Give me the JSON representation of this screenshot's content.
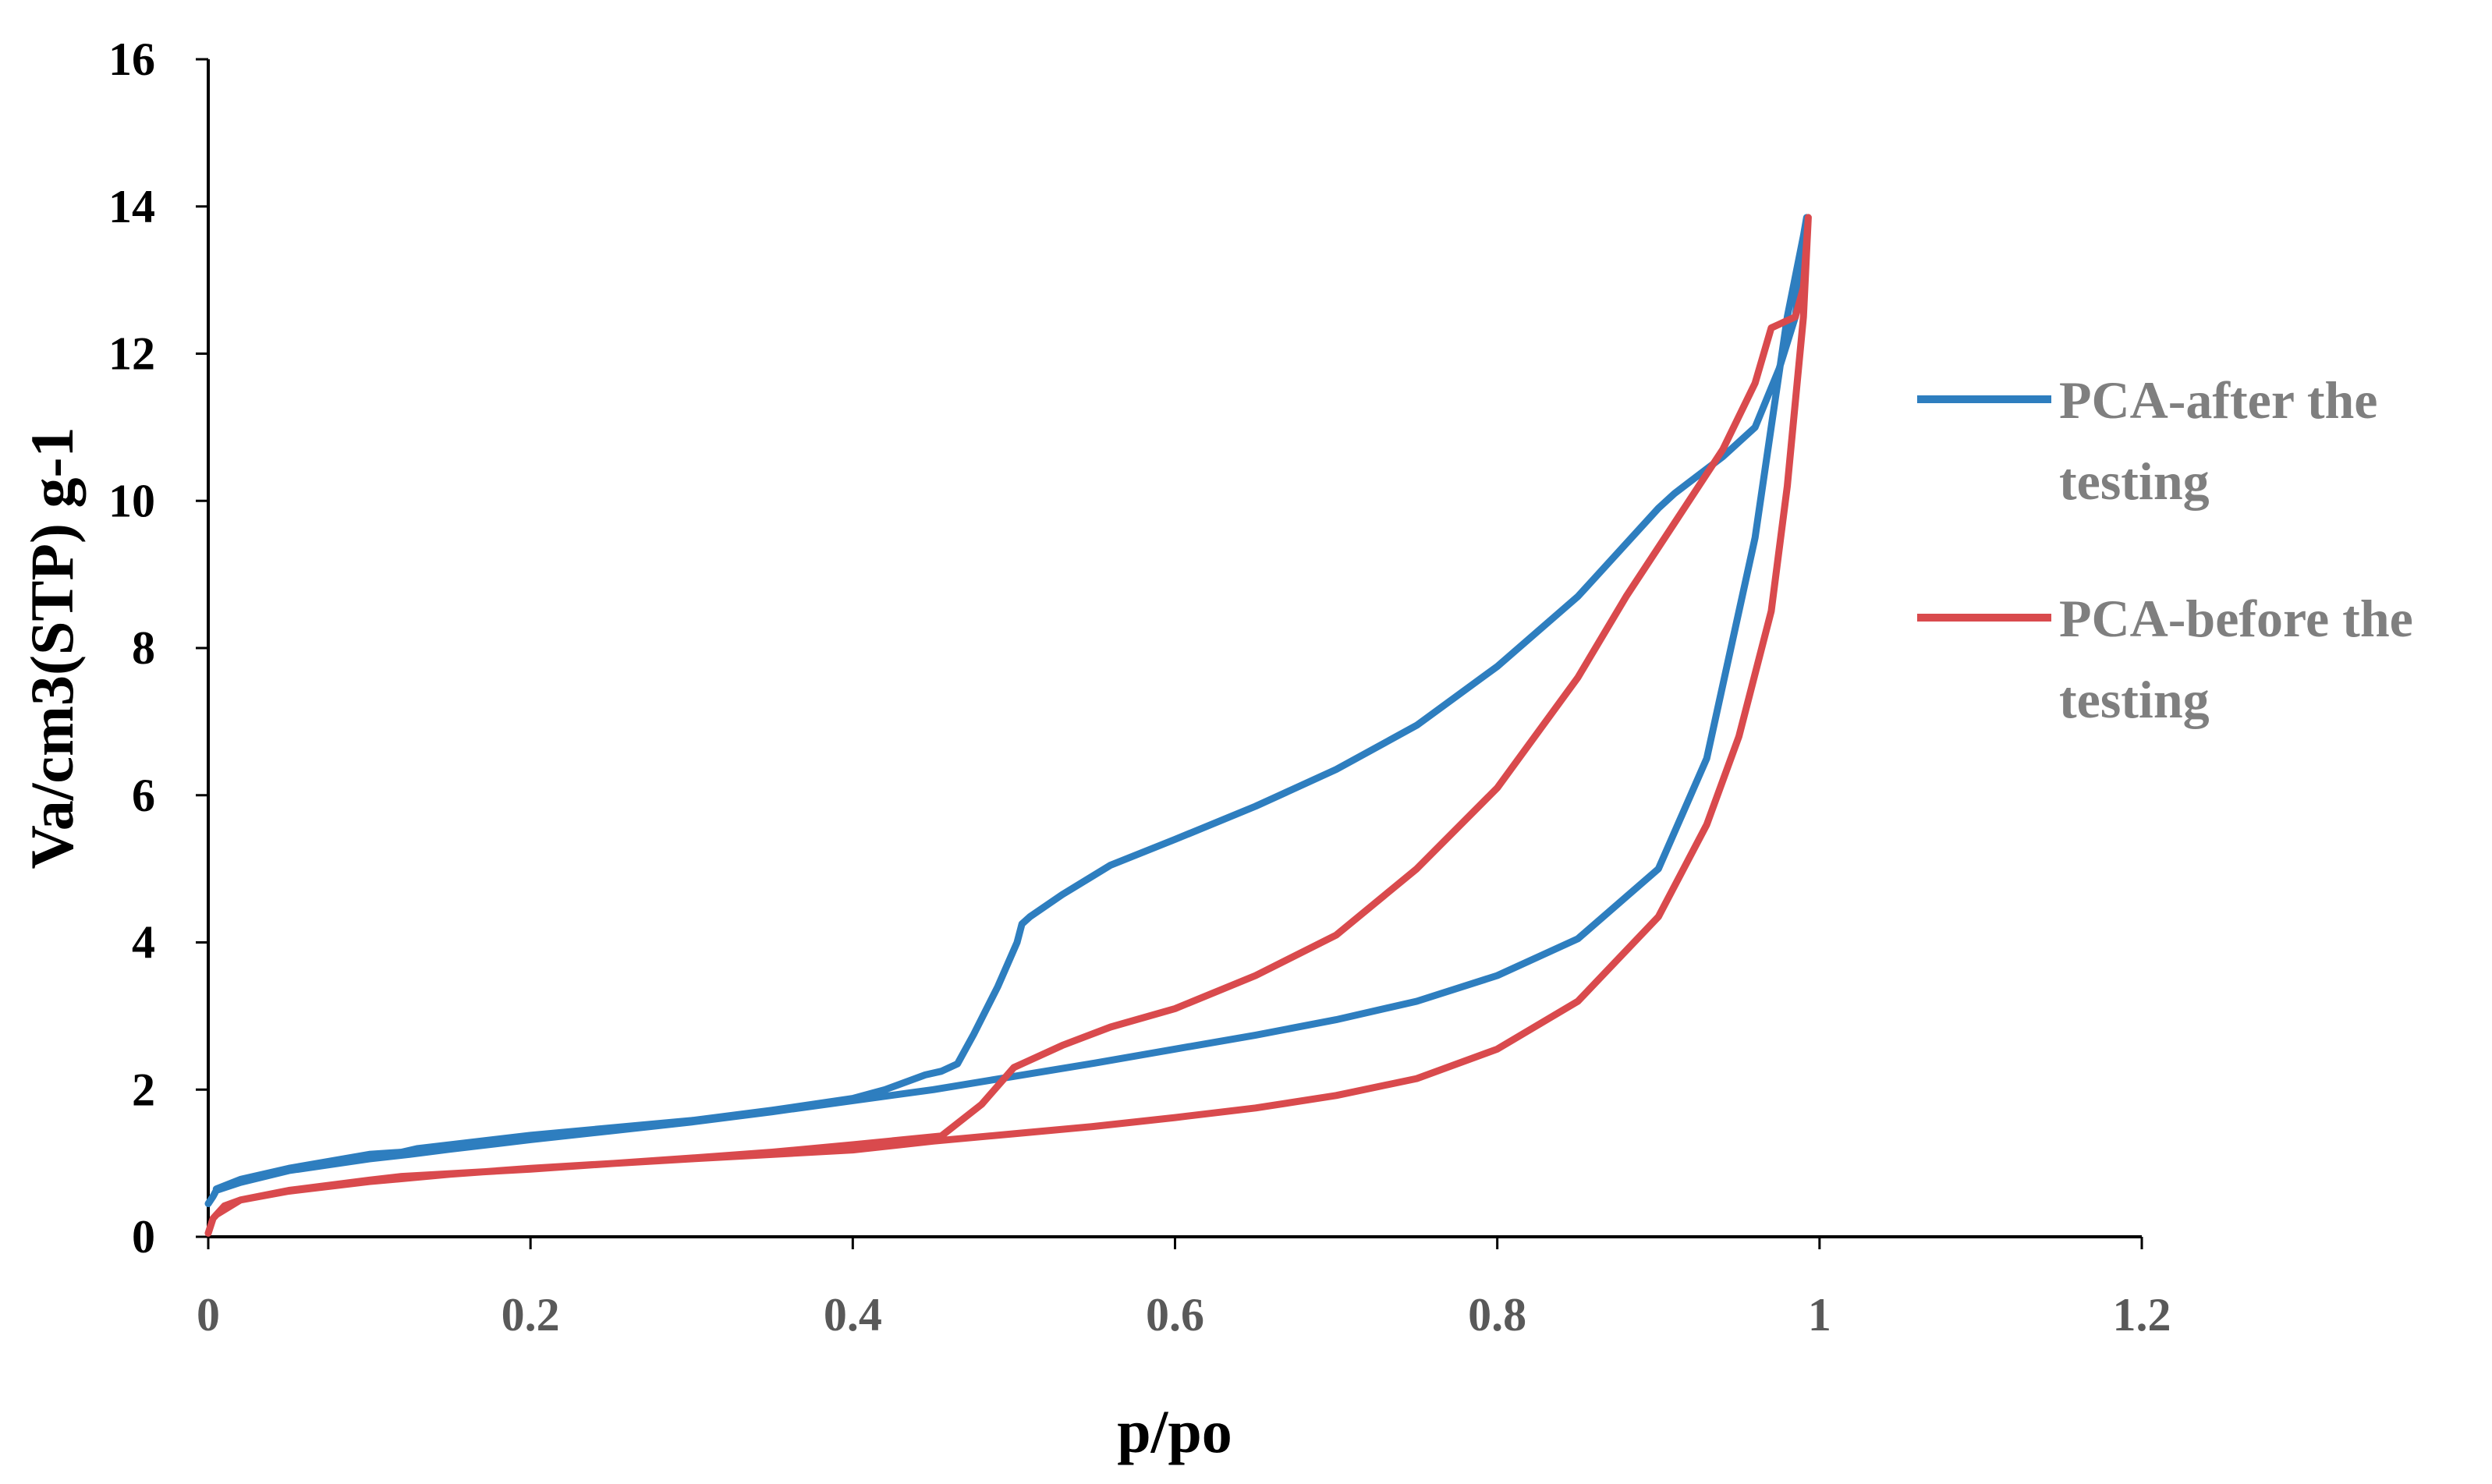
{
  "chart_data": {
    "type": "line",
    "title": "",
    "xlabel": "p/po",
    "ylabel": "Va/cm3(STP) g-1",
    "xlim": [
      0,
      1.2
    ],
    "ylim": [
      0,
      16
    ],
    "xticks": [
      0,
      0.2,
      0.4,
      0.6,
      0.8,
      1,
      1.2
    ],
    "xtick_labels": [
      "0",
      "0.2",
      "0.4",
      "0.6",
      "0.8",
      "1",
      "1.2"
    ],
    "yticks": [
      0,
      2,
      4,
      6,
      8,
      10,
      12,
      14,
      16
    ],
    "ytick_labels": [
      "0",
      "2",
      "4",
      "6",
      "8",
      "10",
      "12",
      "14",
      "16"
    ],
    "grid": false,
    "legend_position": "right",
    "series": [
      {
        "name": "PCA-after the testing",
        "legend_lines": [
          "PCA-after the",
          "testing"
        ],
        "color": "#2e7ebf",
        "x": [
          0.0,
          0.003,
          0.005,
          0.02,
          0.05,
          0.1,
          0.125,
          0.15,
          0.2,
          0.25,
          0.3,
          0.35,
          0.4,
          0.45,
          0.5,
          0.55,
          0.6,
          0.65,
          0.7,
          0.75,
          0.8,
          0.85,
          0.9,
          0.93,
          0.96,
          0.98,
          0.99,
          0.992,
          0.985,
          0.975,
          0.96,
          0.94,
          0.91,
          0.9,
          0.85,
          0.8,
          0.75,
          0.7,
          0.65,
          0.6,
          0.56,
          0.53,
          0.51,
          0.505,
          0.502,
          0.49,
          0.475,
          0.465,
          0.455,
          0.445,
          0.42,
          0.4,
          0.35,
          0.3,
          0.2,
          0.13,
          0.12,
          0.1,
          0.05,
          0.02,
          0.005
        ],
        "y": [
          0.45,
          0.55,
          0.63,
          0.74,
          0.9,
          1.06,
          1.12,
          1.19,
          1.32,
          1.44,
          1.56,
          1.7,
          1.85,
          2.0,
          2.18,
          2.36,
          2.55,
          2.74,
          2.95,
          3.2,
          3.55,
          4.05,
          5.0,
          6.5,
          9.5,
          12.5,
          13.6,
          13.85,
          12.5,
          11.8,
          11.0,
          10.6,
          10.1,
          9.9,
          8.7,
          7.75,
          6.95,
          6.35,
          5.85,
          5.4,
          5.05,
          4.65,
          4.35,
          4.25,
          4.0,
          3.4,
          2.75,
          2.35,
          2.25,
          2.2,
          2.0,
          1.88,
          1.72,
          1.58,
          1.38,
          1.2,
          1.15,
          1.12,
          0.93,
          0.78,
          0.65
        ]
      },
      {
        "name": "PCA-before the testing",
        "legend_lines": [
          "PCA-before the",
          "testing"
        ],
        "color": "#d94a4d",
        "x": [
          0.0,
          0.003,
          0.01,
          0.02,
          0.05,
          0.1,
          0.125,
          0.15,
          0.2,
          0.3,
          0.4,
          0.45,
          0.5,
          0.55,
          0.6,
          0.65,
          0.7,
          0.75,
          0.8,
          0.85,
          0.9,
          0.93,
          0.95,
          0.97,
          0.98,
          0.99,
          0.993,
          0.99,
          0.985,
          0.975,
          0.97,
          0.96,
          0.94,
          0.91,
          0.88,
          0.85,
          0.8,
          0.75,
          0.7,
          0.65,
          0.6,
          0.56,
          0.53,
          0.505,
          0.5,
          0.48,
          0.455,
          0.4,
          0.35,
          0.3,
          0.2,
          0.12,
          0.1,
          0.05,
          0.02,
          0.005
        ],
        "y": [
          0.05,
          0.25,
          0.42,
          0.5,
          0.62,
          0.75,
          0.8,
          0.85,
          0.93,
          1.06,
          1.18,
          1.3,
          1.4,
          1.5,
          1.62,
          1.75,
          1.92,
          2.15,
          2.55,
          3.2,
          4.35,
          5.6,
          6.8,
          8.5,
          10.2,
          12.5,
          13.85,
          12.9,
          12.5,
          12.4,
          12.35,
          11.6,
          10.7,
          9.7,
          8.7,
          7.6,
          6.1,
          5.0,
          4.1,
          3.55,
          3.1,
          2.85,
          2.6,
          2.35,
          2.3,
          1.8,
          1.37,
          1.25,
          1.15,
          1.07,
          0.92,
          0.82,
          0.77,
          0.63,
          0.5,
          0.3
        ]
      }
    ]
  }
}
